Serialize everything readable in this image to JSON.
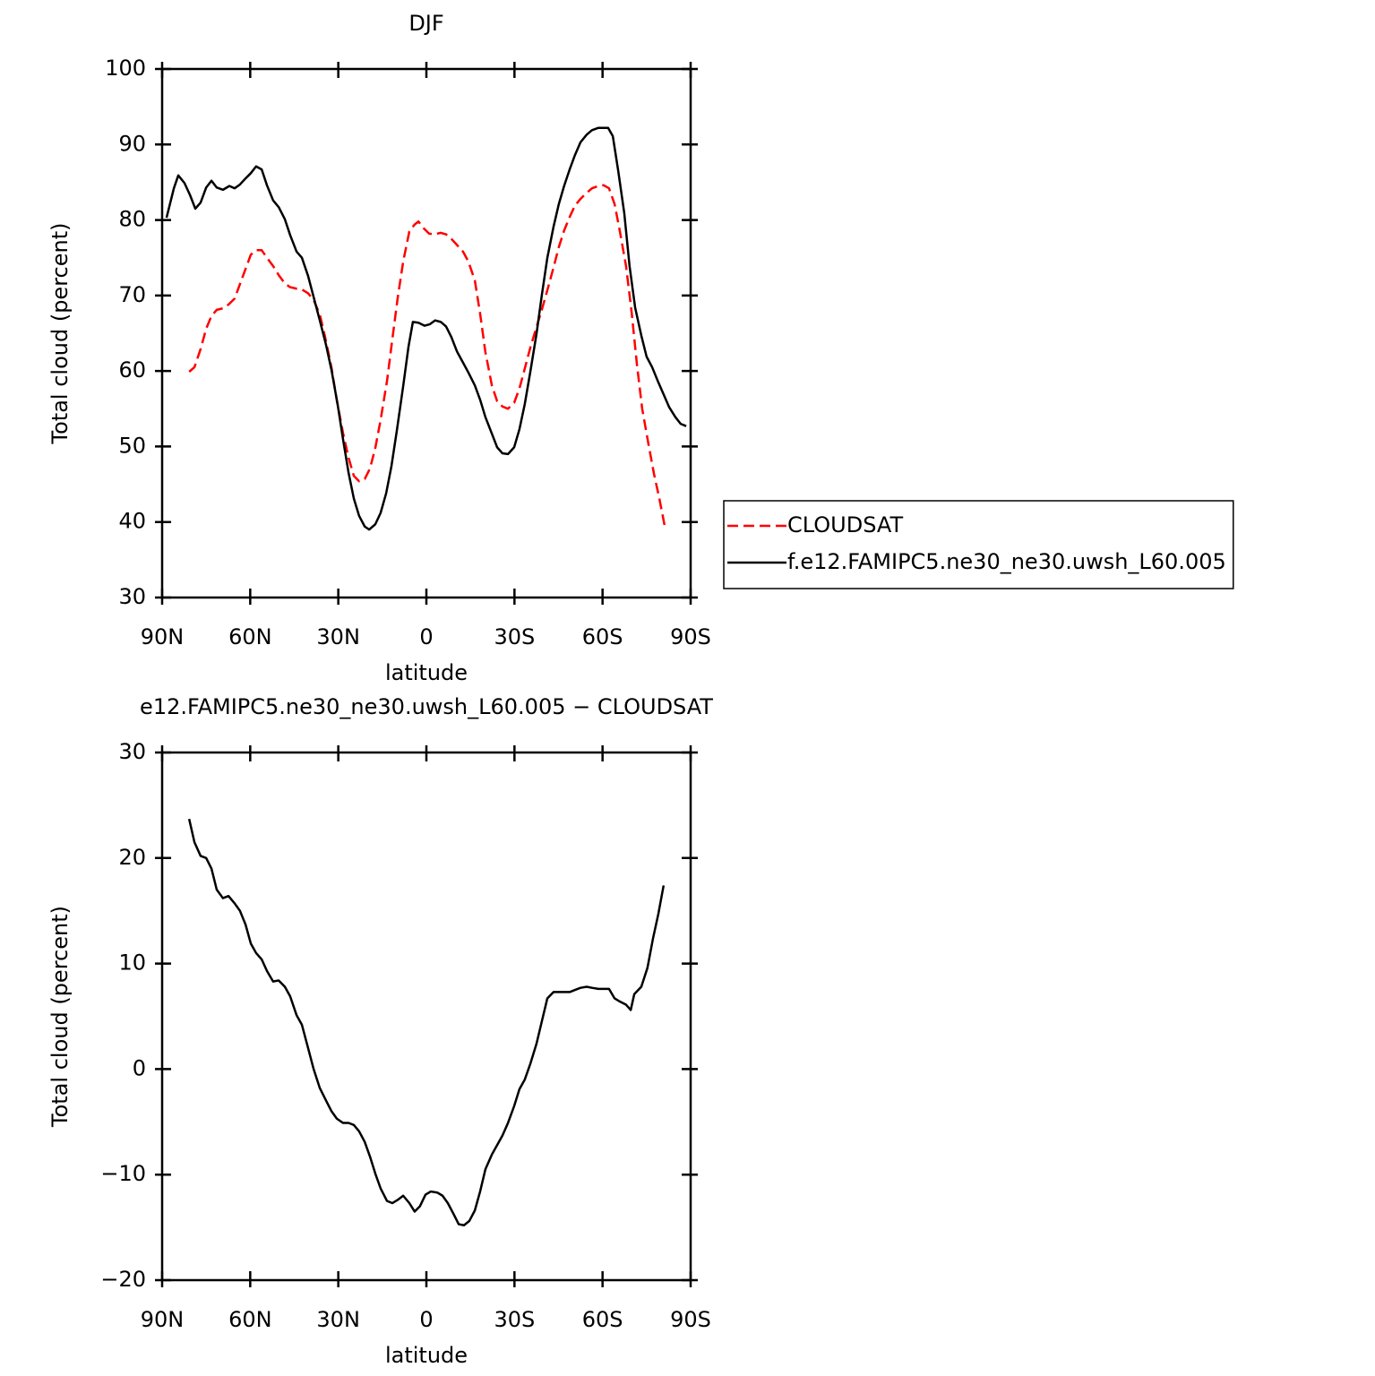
{
  "chart_data": [
    {
      "type": "line",
      "title": "DJF",
      "xlabel": "latitude",
      "ylabel": "Total cloud (percent)",
      "xlim": [
        90,
        -90
      ],
      "xticks": [
        {
          "value": 90,
          "label": "90N"
        },
        {
          "value": 60,
          "label": "60N"
        },
        {
          "value": 30,
          "label": "30N"
        },
        0,
        {
          "value": -30,
          "label": "30S"
        },
        {
          "value": -60,
          "label": "60S"
        },
        {
          "value": -90,
          "label": "90S"
        }
      ],
      "ylim": [
        30,
        100
      ],
      "yticks": [
        30,
        40,
        50,
        60,
        70,
        80,
        90,
        100
      ],
      "legend": "right",
      "series": [
        {
          "name": "CLOUDSAT",
          "color": "#ff0000",
          "dashed": true,
          "x": [
            80.8,
            79,
            76.9,
            75,
            73.2,
            71.4,
            69.3,
            67.4,
            65.3,
            63.5,
            61.6,
            59.8,
            58,
            56.1,
            54.3,
            52.2,
            50.3,
            48.2,
            46.4,
            44.2,
            42.4,
            40.3,
            38.4,
            36.3,
            34.5,
            32.3,
            30.5,
            28.4,
            26.5,
            24.7,
            22.9,
            21,
            19.2,
            17.4,
            15.6,
            13.4,
            11.6,
            9.8,
            7.9,
            5.8,
            4,
            2.7,
            0.9,
            -0.9,
            -2.7,
            -4.9,
            -6.7,
            -8.5,
            -10.4,
            -12.5,
            -14.3,
            -16.5,
            -18.3,
            -20.1,
            -22.3,
            -24.1,
            -25.9,
            -27.8,
            -29.9,
            -31.7,
            -33.5,
            -35.4,
            -37.5,
            -39.3,
            -41.2,
            -43.3,
            -45.1,
            -46.9,
            -48.8,
            -50.6,
            -52.5,
            -54.6,
            -56.4,
            -58.6,
            -60.4,
            -62.2,
            -64.1,
            -65.9,
            -68,
            -69.9,
            -71.7,
            -73.5,
            -75.6,
            -77.5,
            -79.3,
            -81.1
          ],
          "values": [
            59.9,
            60.5,
            62.9,
            65.6,
            67.3,
            68.1,
            68.3,
            68.8,
            69.6,
            71.5,
            73.5,
            75.4,
            76,
            76,
            75,
            73.9,
            72.7,
            71.6,
            71.1,
            70.9,
            70.8,
            70.3,
            69.4,
            67.5,
            64.5,
            60.4,
            56.1,
            51.8,
            48.5,
            46.1,
            45.4,
            45.7,
            47.1,
            49.8,
            53.5,
            58.7,
            64.2,
            69.6,
            74.5,
            78.5,
            79.4,
            79.8,
            78.9,
            78.2,
            78.1,
            78.3,
            78.1,
            77.5,
            76.7,
            75.8,
            74.5,
            72,
            67.6,
            62.5,
            58.1,
            56,
            55.3,
            55,
            55.8,
            57.7,
            60.3,
            63.1,
            65.8,
            68.1,
            70.7,
            73.7,
            76.4,
            78.6,
            80.4,
            81.9,
            82.8,
            83.6,
            84.2,
            84.5,
            84.6,
            84.2,
            82.1,
            78.5,
            73.9,
            67.8,
            60.9,
            55,
            50.4,
            46.4,
            43.2,
            39.6
          ]
        },
        {
          "name": "f.e12.FAMIPC5.ne30_ne30.uwsh_L60.005",
          "color": "#000000",
          "dashed": false,
          "x": [
            88.5,
            86,
            84.5,
            82.4,
            80.5,
            78.7,
            76.9,
            75,
            73.2,
            71.4,
            69.3,
            67.1,
            65.3,
            63.5,
            61.6,
            59.8,
            58,
            56.1,
            54.3,
            52.2,
            50.3,
            48.2,
            46.4,
            44.2,
            42.4,
            40.3,
            38.4,
            36.3,
            34.2,
            32.3,
            30.2,
            28.4,
            26.5,
            24.7,
            22.9,
            21,
            19.5,
            17.4,
            15.6,
            13.7,
            11.9,
            10.1,
            7.9,
            6.1,
            4.6,
            2.7,
            0.6,
            -1.2,
            -3,
            -4.9,
            -6.7,
            -8.5,
            -10.4,
            -12.5,
            -14.3,
            -16.5,
            -18.3,
            -20.1,
            -22.3,
            -24.1,
            -25.9,
            -27.8,
            -29.9,
            -31.7,
            -33.5,
            -35.4,
            -37.5,
            -39.3,
            -41.2,
            -43.3,
            -45.1,
            -46.9,
            -48.8,
            -50.6,
            -52.5,
            -54.6,
            -56.4,
            -58.6,
            -60.4,
            -61.9,
            -63.5,
            -65.3,
            -67.4,
            -69.2,
            -71.1,
            -73.2,
            -75,
            -76.9,
            -79,
            -80.8,
            -82.7,
            -84.8,
            -86.6,
            -88.5
          ],
          "values": [
            80.3,
            84.2,
            85.9,
            84.9,
            83.3,
            81.5,
            82.3,
            84.3,
            85.2,
            84.3,
            84,
            84.5,
            84.2,
            84.7,
            85.5,
            86.2,
            87.1,
            86.7,
            84.6,
            82.6,
            81.7,
            80.1,
            78,
            75.8,
            75,
            72.6,
            69.8,
            66.7,
            63.5,
            60.1,
            55.5,
            51,
            46.5,
            43.1,
            40.8,
            39.4,
            39,
            39.7,
            41.2,
            43.8,
            47.4,
            52,
            58,
            63.2,
            66.5,
            66.4,
            66,
            66.2,
            66.7,
            66.5,
            65.9,
            64.5,
            62.6,
            61.1,
            59.8,
            58.1,
            56.2,
            53.9,
            51.7,
            49.9,
            49.1,
            49,
            49.9,
            52.3,
            55.6,
            59.9,
            64.9,
            70,
            75,
            79.1,
            82.1,
            84.5,
            86.7,
            88.6,
            90.3,
            91.3,
            91.9,
            92.2,
            92.2,
            92.2,
            91.1,
            86.6,
            80.9,
            73.9,
            68.4,
            64.7,
            61.9,
            60.5,
            58.5,
            56.9,
            55.2,
            53.9,
            53,
            52.7
          ]
        }
      ]
    },
    {
      "type": "line",
      "title": "e12.FAMIPC5.ne30_ne30.uwsh_L60.005 − CLOUDSAT",
      "xlabel": "latitude",
      "ylabel": "Total cloud (percent)",
      "xlim": [
        90,
        -90
      ],
      "xticks": [
        {
          "value": 90,
          "label": "90N"
        },
        {
          "value": 60,
          "label": "60N"
        },
        {
          "value": 30,
          "label": "30N"
        },
        0,
        {
          "value": -30,
          "label": "30S"
        },
        {
          "value": -60,
          "label": "60S"
        },
        {
          "value": -90,
          "label": "90S"
        }
      ],
      "ylim": [
        -20,
        30
      ],
      "yticks": [
        {
          "value": -20,
          "label": "−20"
        },
        {
          "value": -10,
          "label": "−10"
        },
        0,
        10,
        20,
        30
      ],
      "series": [
        {
          "color": "#000000",
          "dashed": false,
          "x": [
            80.8,
            79,
            76.9,
            75,
            73.2,
            71.4,
            69.3,
            67.4,
            65.3,
            63.5,
            61.6,
            59.8,
            58,
            56.1,
            54.3,
            52.2,
            50.3,
            48.2,
            46.4,
            44.2,
            42.4,
            40.3,
            38.4,
            36.3,
            34.5,
            32.3,
            30.5,
            28.4,
            26.5,
            24.7,
            22.9,
            21,
            19.2,
            17.4,
            15.6,
            13.4,
            11.6,
            9.8,
            7.9,
            5.8,
            4,
            2.2,
            0.3,
            -1.5,
            -3.7,
            -5.5,
            -7.3,
            -9.2,
            -11,
            -12.8,
            -14.6,
            -16.5,
            -18.3,
            -20.1,
            -22.3,
            -24.1,
            -25.9,
            -27.8,
            -29.9,
            -31.7,
            -33.5,
            -35.4,
            -37.5,
            -39.3,
            -41.2,
            -43.3,
            -45.1,
            -46.9,
            -48.8,
            -50.6,
            -52.5,
            -54.6,
            -56.4,
            -58.6,
            -60.4,
            -62.2,
            -64.1,
            -65.9,
            -68,
            -69.6,
            -70.8,
            -73.2,
            -75.3,
            -77.2,
            -79,
            -80.8
          ],
          "values": [
            23.7,
            21.5,
            20.2,
            20,
            19,
            17,
            16.2,
            16.4,
            15.7,
            15,
            13.7,
            11.9,
            11,
            10.4,
            9.3,
            8.3,
            8.4,
            7.8,
            6.9,
            5.1,
            4.2,
            2,
            0,
            -1.8,
            -2.8,
            -4,
            -4.7,
            -5.1,
            -5.1,
            -5.3,
            -5.9,
            -6.9,
            -8.3,
            -9.9,
            -11.3,
            -12.5,
            -12.7,
            -12.4,
            -12,
            -12.7,
            -13.5,
            -13,
            -11.9,
            -11.6,
            -11.7,
            -12,
            -12.7,
            -13.7,
            -14.7,
            -14.8,
            -14.4,
            -13.4,
            -11.6,
            -9.5,
            -8.1,
            -7.2,
            -6.3,
            -5.1,
            -3.5,
            -1.9,
            -1,
            0.5,
            2.4,
            4.5,
            6.7,
            7.3,
            7.3,
            7.3,
            7.3,
            7.5,
            7.7,
            7.8,
            7.7,
            7.6,
            7.6,
            7.6,
            6.7,
            6.4,
            6.1,
            5.6,
            7.1,
            7.8,
            9.6,
            12.4,
            14.7,
            17.4
          ]
        }
      ]
    }
  ]
}
